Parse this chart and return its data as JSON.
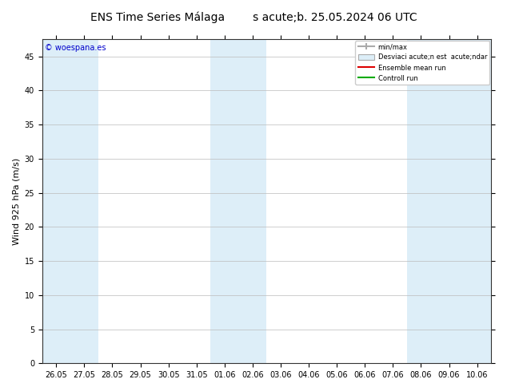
{
  "title": "ENS Time Series Málaga",
  "subtitle": "s acute;b. 25.05.2024 06 UTC",
  "ylabel": "Wind 925 hPa (m/s)",
  "ylim": [
    0,
    47.5
  ],
  "yticks": [
    0,
    5,
    10,
    15,
    20,
    25,
    30,
    35,
    40,
    45
  ],
  "x_labels": [
    "26.05",
    "27.05",
    "28.05",
    "29.05",
    "30.05",
    "31.05",
    "01.06",
    "02.06",
    "03.06",
    "04.06",
    "05.06",
    "06.06",
    "07.06",
    "08.06",
    "09.06",
    "10.06"
  ],
  "num_days": 16,
  "shaded_columns": [
    0,
    1,
    6,
    7,
    13,
    14,
    15
  ],
  "shaded_color": "#ddeef8",
  "background_color": "#ffffff",
  "plot_bg_color": "#ffffff",
  "grid_color": "#bbbbbb",
  "copyright_text": "© woespana.es",
  "legend_minmax_color": "#aaaaaa",
  "legend_std_color": "#ddeef8",
  "legend_std_edge": "#aaaaaa",
  "legend_ensemble_color": "#dd0000",
  "legend_control_color": "#00aa00",
  "title_fontsize": 10,
  "tick_fontsize": 7,
  "ylabel_fontsize": 8,
  "copyright_color": "#0000cc",
  "legend_label_minmax": "min/max",
  "legend_label_std": "Desviaci acute;n est  acute;ndar",
  "legend_label_ensemble": "Ensemble mean run",
  "legend_label_control": "Controll run"
}
